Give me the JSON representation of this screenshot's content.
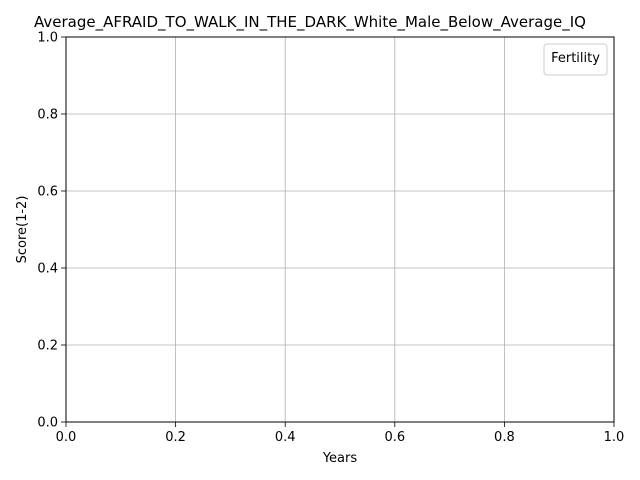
{
  "chart_data": {
    "type": "line",
    "title": "Average_AFRAID_TO_WALK_IN_THE_DARK_White_Male_Below_Average_IQ",
    "xlabel": "Years",
    "ylabel": "Score(1-2)",
    "xlim": [
      0.0,
      1.0
    ],
    "ylim": [
      0.0,
      1.0
    ],
    "x_ticks": [
      "0.0",
      "0.2",
      "0.4",
      "0.6",
      "0.8",
      "1.0"
    ],
    "y_ticks": [
      "0.0",
      "0.2",
      "0.4",
      "0.6",
      "0.8",
      "1.0"
    ],
    "grid": true,
    "legend": {
      "title": "Fertility",
      "placement": "top-right",
      "entries": []
    },
    "series": []
  }
}
